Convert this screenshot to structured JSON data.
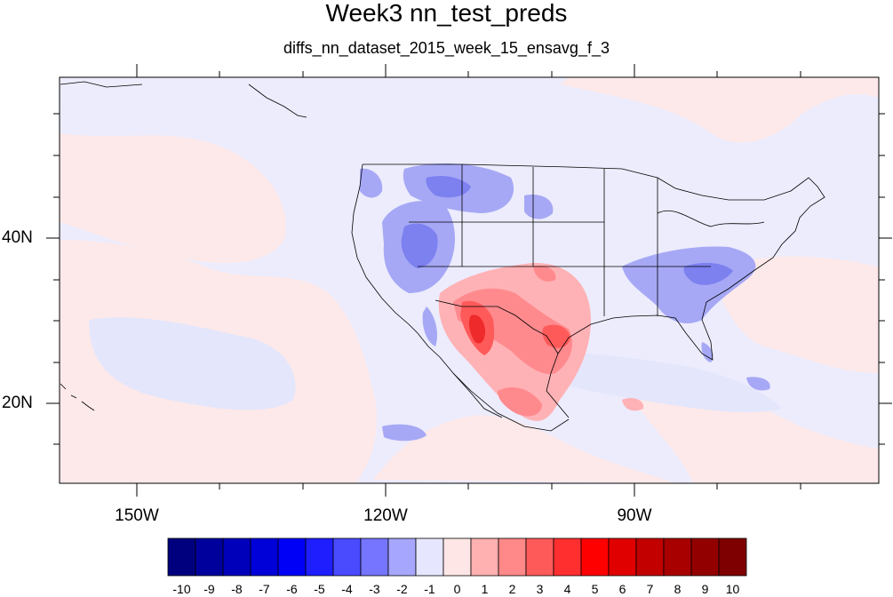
{
  "title": "Week3 nn_test_preds",
  "subtitle": "diffs_nn_dataset_2015_week_15_ensavg_f_3",
  "longitude_labels": [
    "150W",
    "120W",
    "90W"
  ],
  "latitude_labels": [
    "40N",
    "20N"
  ],
  "colorbar": {
    "labels": [
      "-10",
      "-9",
      "-8",
      "-7",
      "-6",
      "-5",
      "-4",
      "-3",
      "-2",
      "-1",
      "0",
      "1",
      "2",
      "3",
      "4",
      "5",
      "6",
      "7",
      "8",
      "9",
      "10"
    ],
    "colors": [
      "#00007f",
      "#00009d",
      "#0000bb",
      "#0000d9",
      "#0000f6",
      "#1e1eff",
      "#4a4aff",
      "#7575ff",
      "#a6a6ff",
      "#e6e6ff",
      "#ffe6e6",
      "#ffb0b0",
      "#ff8888",
      "#ff5a5a",
      "#ff2f2f",
      "#ff0000",
      "#e00000",
      "#c20000",
      "#a80000",
      "#920000",
      "#7e0000"
    ]
  },
  "colors": {
    "background_field": "#ececfd",
    "light_positive": "#fde9ea",
    "light_negative": "#e4e6fb",
    "blue_2": "#a6a8f5",
    "blue_3": "#7d80ef",
    "red_2": "#ffb2b5",
    "red_3": "#ff8a8e",
    "red_4": "#ff5a5a",
    "red_5": "#ee2a2a"
  }
}
